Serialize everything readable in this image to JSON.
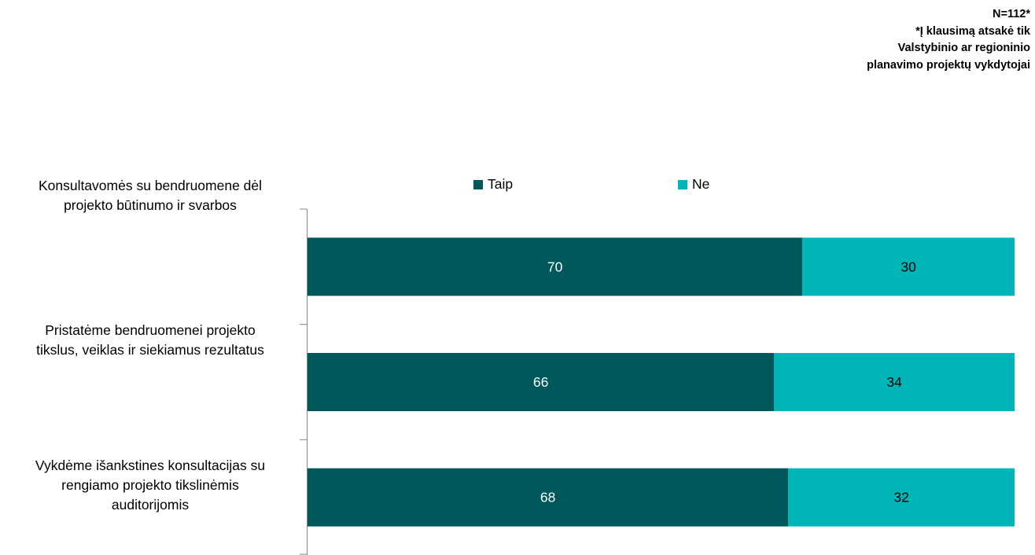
{
  "note": {
    "n": "N=112*",
    "lines": [
      "*Į klausimą atsakė tik",
      "Valstybinio ar regioninio",
      "planavimo projektų vykdytojai"
    ]
  },
  "chart_data": {
    "type": "bar",
    "orientation": "horizontal",
    "stacked": true,
    "percent_stacked": true,
    "title": "",
    "xlabel": "",
    "ylabel": "",
    "xlim": [
      0,
      100
    ],
    "grid": false,
    "legend_position": "top",
    "categories": [
      [
        "Konsultavomės su bendruomene dėl",
        "projekto būtinumo ir svarbos"
      ],
      [
        "Pristatėme bendruomenei projekto",
        "tikslus, veiklas ir siekiamus rezultatus"
      ],
      [
        "Vykdėme išankstines konsultacijas su",
        "rengiamo projekto tikslinėmis",
        "auditorijomis"
      ]
    ],
    "series": [
      {
        "name": "Taip",
        "color": "#00585c",
        "values": [
          70,
          66,
          68
        ]
      },
      {
        "name": "Ne",
        "color": "#00b5b8",
        "values": [
          30,
          34,
          32
        ]
      }
    ]
  }
}
